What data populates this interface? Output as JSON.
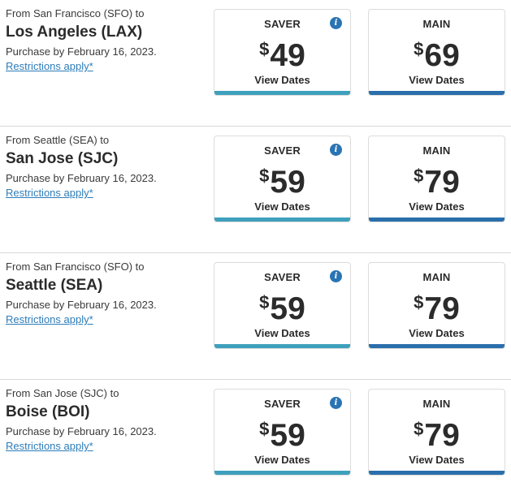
{
  "colors": {
    "saver_bar": "#3ea0bd",
    "main_bar": "#2a6fac",
    "info_icon": "#2a74b3",
    "link": "#2d7cb8"
  },
  "routes": [
    {
      "from": "From San Francisco (SFO) to",
      "destination": "Los Angeles (LAX)",
      "purchase": "Purchase by February 16, 2023.",
      "restrictions": "Restrictions apply*",
      "saver": {
        "label": "SAVER",
        "currency": "$",
        "price": "49",
        "cta": "View Dates"
      },
      "main": {
        "label": "MAIN",
        "currency": "$",
        "price": "69",
        "cta": "View Dates"
      }
    },
    {
      "from": "From Seattle (SEA) to",
      "destination": "San Jose (SJC)",
      "purchase": "Purchase by February 16, 2023.",
      "restrictions": "Restrictions apply*",
      "saver": {
        "label": "SAVER",
        "currency": "$",
        "price": "59",
        "cta": "View Dates"
      },
      "main": {
        "label": "MAIN",
        "currency": "$",
        "price": "79",
        "cta": "View Dates"
      }
    },
    {
      "from": "From San Francisco (SFO) to",
      "destination": "Seattle (SEA)",
      "purchase": "Purchase by February 16, 2023.",
      "restrictions": "Restrictions apply*",
      "saver": {
        "label": "SAVER",
        "currency": "$",
        "price": "59",
        "cta": "View Dates"
      },
      "main": {
        "label": "MAIN",
        "currency": "$",
        "price": "79",
        "cta": "View Dates"
      }
    },
    {
      "from": "From San Jose (SJC) to",
      "destination": "Boise (BOI)",
      "purchase": "Purchase by February 16, 2023.",
      "restrictions": "Restrictions apply*",
      "saver": {
        "label": "SAVER",
        "currency": "$",
        "price": "59",
        "cta": "View Dates"
      },
      "main": {
        "label": "MAIN",
        "currency": "$",
        "price": "79",
        "cta": "View Dates"
      }
    }
  ],
  "info_icon_glyph": "i"
}
